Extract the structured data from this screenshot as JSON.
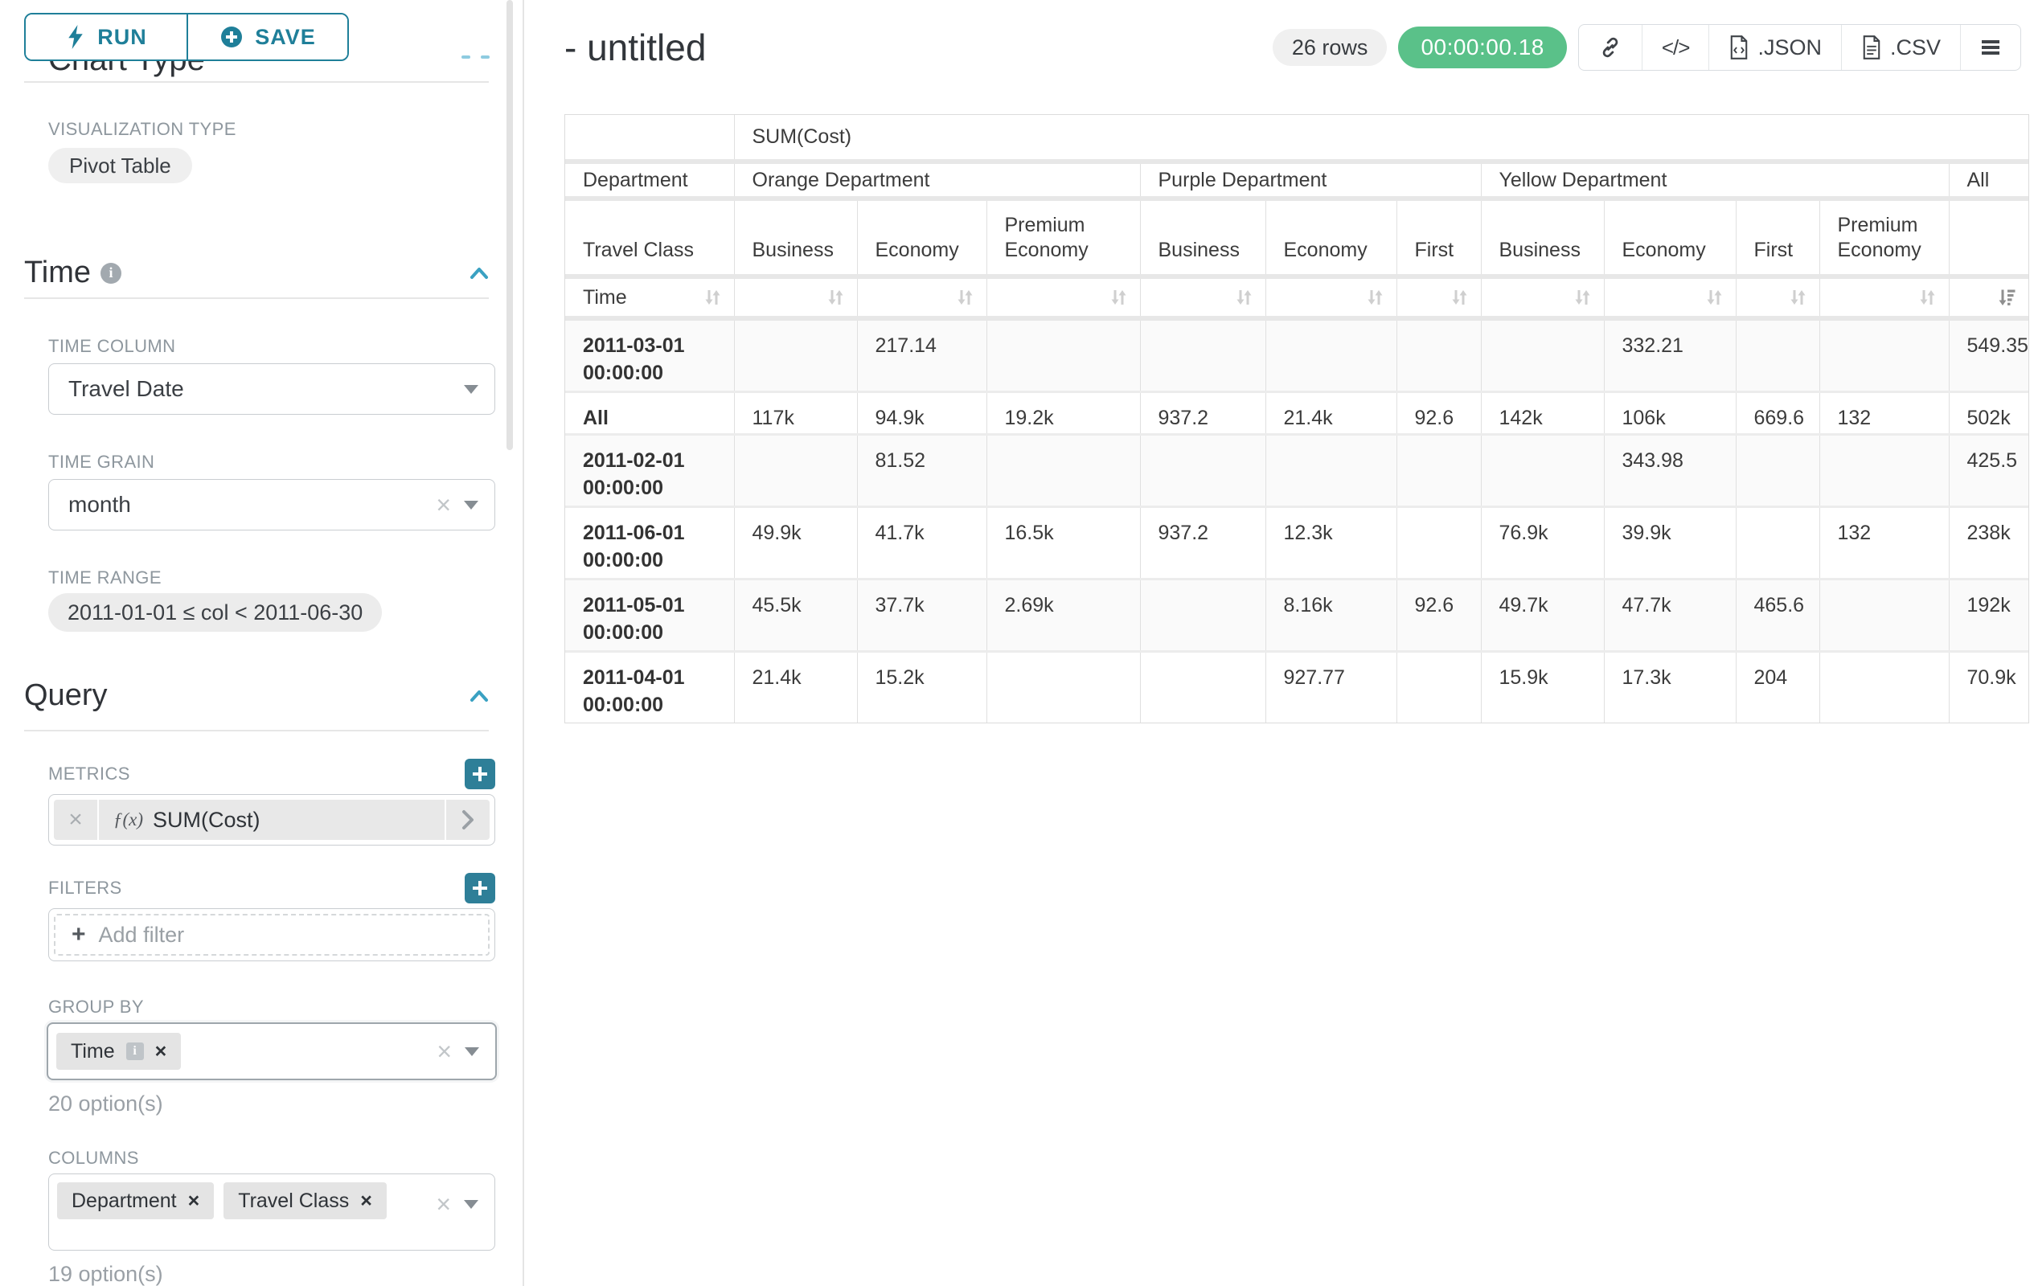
{
  "colors": {
    "accent": "#1f7f99",
    "accent_fill": "#2e7f98",
    "timer_green": "#5ac189",
    "chevron_blue": "#3aa1c2"
  },
  "sidebar": {
    "run_label": "RUN",
    "save_label": "SAVE",
    "hidden_heading": "Chart Type",
    "visualization": {
      "label": "VISUALIZATION TYPE",
      "value": "Pivot Table"
    },
    "time": {
      "title": "Time",
      "column_label": "TIME COLUMN",
      "column_value": "Travel Date",
      "grain_label": "TIME GRAIN",
      "grain_value": "month",
      "range_label": "TIME RANGE",
      "range_value": "2011-01-01 ≤ col < 2011-06-30"
    },
    "query": {
      "title": "Query",
      "metrics": {
        "label": "METRICS",
        "metric_prefix": "ƒ(x)",
        "metric_name": "SUM(Cost)"
      },
      "filters": {
        "label": "FILTERS",
        "placeholder": "Add filter"
      },
      "group_by": {
        "label": "GROUP BY",
        "chips": [
          {
            "label": "Time",
            "has_info": true
          }
        ],
        "hint": "20 option(s)"
      },
      "columns": {
        "label": "COLUMNS",
        "chips": [
          {
            "label": "Department"
          },
          {
            "label": "Travel Class"
          }
        ],
        "hint": "19 option(s)"
      }
    }
  },
  "main": {
    "title": "- untitled",
    "rows_badge": "26 rows",
    "timer": "00:00:00.18",
    "toolbar": {
      "json_label": ".JSON",
      "csv_label": ".CSV"
    }
  },
  "pivot_table": {
    "metric_header": "SUM(Cost)",
    "row_dimension": "Time",
    "col_dimension_row2": "Department",
    "col_dimension_row3": "Travel Class",
    "groups": [
      {
        "name": "Orange Department",
        "columns": [
          "Business",
          "Economy",
          "Premium Economy"
        ]
      },
      {
        "name": "Purple Department",
        "columns": [
          "Business",
          "Economy",
          "First"
        ]
      },
      {
        "name": "Yellow Department",
        "columns": [
          "Business",
          "Economy",
          "First",
          "Premium Economy"
        ]
      },
      {
        "name": "All",
        "columns": [
          ""
        ]
      }
    ],
    "rows": [
      {
        "label": "2011-03-01 00:00:00",
        "values": [
          "",
          "217.14",
          "",
          "",
          "",
          "",
          "",
          "332.21",
          "",
          "",
          "549.35"
        ]
      },
      {
        "label": "All",
        "values": [
          "117k",
          "94.9k",
          "19.2k",
          "937.2",
          "21.4k",
          "92.6",
          "142k",
          "106k",
          "669.6",
          "132",
          "502k"
        ]
      },
      {
        "label": "2011-02-01 00:00:00",
        "values": [
          "",
          "81.52",
          "",
          "",
          "",
          "",
          "",
          "343.98",
          "",
          "",
          "425.5"
        ]
      },
      {
        "label": "2011-06-01 00:00:00",
        "values": [
          "49.9k",
          "41.7k",
          "16.5k",
          "937.2",
          "12.3k",
          "",
          "76.9k",
          "39.9k",
          "",
          "132",
          "238k"
        ]
      },
      {
        "label": "2011-05-01 00:00:00",
        "values": [
          "45.5k",
          "37.7k",
          "2.69k",
          "",
          "8.16k",
          "92.6",
          "49.7k",
          "47.7k",
          "465.6",
          "",
          "192k"
        ]
      },
      {
        "label": "2011-04-01 00:00:00",
        "values": [
          "21.4k",
          "15.2k",
          "",
          "",
          "927.77",
          "",
          "15.9k",
          "17.3k",
          "204",
          "",
          "70.9k"
        ]
      }
    ],
    "sorted_column": "All",
    "sort_direction": "descending"
  }
}
